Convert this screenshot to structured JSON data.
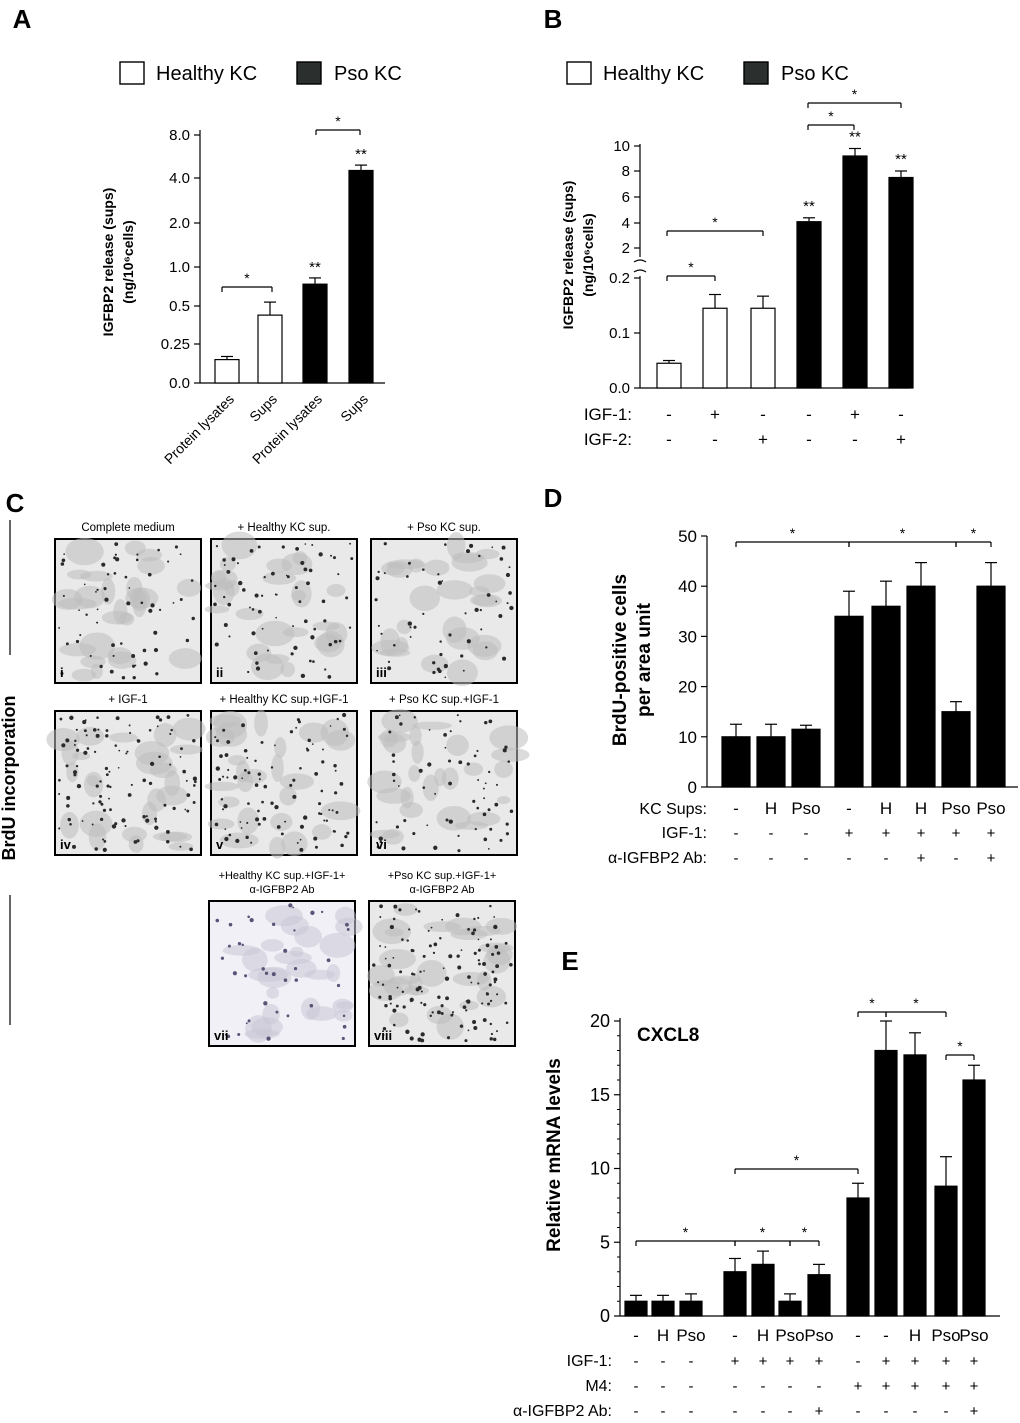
{
  "panel_letters": [
    "A",
    "B",
    "C",
    "D",
    "E"
  ],
  "legend": {
    "healthy": "Healthy KC",
    "pso": "Pso KC"
  },
  "colors": {
    "healthy_fill": "#ffffff",
    "pso_fill": "#000000",
    "swatch_pso": "#2b2f2e",
    "micro_bg": "#e9e9ea",
    "micro_dot": "#2a2a2a"
  },
  "sig": {
    "star": "*",
    "double_star": "**"
  },
  "panelC": {
    "side_label": "BrdU incorporation",
    "images": [
      {
        "title": "Complete medium",
        "numeral": "i"
      },
      {
        "title": "+ Healthy KC sup.",
        "numeral": "ii"
      },
      {
        "title": "+ Pso KC sup.",
        "numeral": "iii"
      },
      {
        "title": "+ IGF-1",
        "numeral": "iv"
      },
      {
        "title": "+ Healthy KC sup.+IGF-1",
        "numeral": "v"
      },
      {
        "title": "+ Pso KC sup.+IGF-1",
        "numeral": "vi"
      },
      {
        "title": "+Healthy KC sup.+IGF-1+",
        "title2": "α-IGFBP2 Ab",
        "numeral": "vii"
      },
      {
        "title": "+Pso KC sup.+IGF-1+",
        "title2": "α-IGFBP2 Ab",
        "numeral": "viii"
      }
    ]
  },
  "chart_data": [
    {
      "panel": "A",
      "type": "bar",
      "ylabel": "IGFBP2 release (sups)",
      "ylabel2": "(ng/10⁶cells)",
      "y_scale": "segmented",
      "y_ticks": [
        "0.0",
        "0.25",
        "0.5",
        "1.0",
        "2.0",
        "4.0",
        "8.0"
      ],
      "categories": [
        "Protein lysates",
        "Sups",
        "Protein lysates",
        "Sups"
      ],
      "groups": [
        "Healthy KC",
        "Healthy KC",
        "Pso KC",
        "Pso KC"
      ],
      "values": [
        0.15,
        0.44,
        0.78,
        4.7
      ],
      "errors": [
        0.02,
        0.11,
        0.08,
        0.5
      ],
      "annotations": [
        "",
        "",
        "**",
        "**"
      ]
    },
    {
      "panel": "B",
      "type": "bar",
      "ylabel": "IGFBP2 release (sups)",
      "ylabel2": "(ng/10⁶cells)",
      "y_scale": "broken",
      "y_ticks": [
        "0.0",
        "0.1",
        "0.2",
        "2",
        "4",
        "6",
        "8",
        "10"
      ],
      "row_labels": [
        "IGF-1:",
        "IGF-2:"
      ],
      "igf1": [
        "-",
        "+",
        "-",
        "-",
        "+",
        "-"
      ],
      "igf2": [
        "-",
        "-",
        "+",
        "-",
        "-",
        "+"
      ],
      "groups": [
        "Healthy KC",
        "Healthy KC",
        "Healthy KC",
        "Pso KC",
        "Pso KC",
        "Pso KC"
      ],
      "values": [
        0.045,
        0.145,
        0.145,
        4.1,
        9.2,
        7.5
      ],
      "errors": [
        0.005,
        0.025,
        0.022,
        0.3,
        0.6,
        0.5
      ],
      "annotations": [
        "",
        "",
        "",
        "**",
        "**",
        "**"
      ]
    },
    {
      "panel": "D",
      "type": "bar",
      "ylabel": "BrdU-positive cells",
      "ylabel2": "per area unit",
      "ylim": [
        0,
        50
      ],
      "y_ticks": [
        "0",
        "10",
        "20",
        "30",
        "40",
        "50"
      ],
      "row_labels": [
        "KC Sups:",
        "IGF-1:",
        "α-IGFBP2 Ab:"
      ],
      "kc_sups": [
        "-",
        "H",
        "Pso",
        "-",
        "H",
        "H",
        "Pso",
        "Pso"
      ],
      "igf1": [
        "-",
        "-",
        "-",
        "+",
        "+",
        "+",
        "+",
        "+"
      ],
      "ab": [
        "-",
        "-",
        "-",
        "-",
        "-",
        "+",
        "-",
        "+"
      ],
      "values": [
        10,
        10,
        11.5,
        34,
        36,
        40,
        15,
        40
      ],
      "errors": [
        2.5,
        2.5,
        0.8,
        5,
        5,
        4.7,
        2,
        4.7
      ]
    },
    {
      "panel": "E",
      "type": "bar",
      "title": "CXCL8",
      "ylabel": "Relative mRNA levels",
      "ylim": [
        0,
        20
      ],
      "y_ticks": [
        "0",
        "5",
        "10",
        "15",
        "20"
      ],
      "row_labels": [
        "IGF-1:",
        "M4:",
        "α-IGFBP2 Ab:"
      ],
      "kc_sups": [
        "-",
        "H",
        "Pso",
        "-",
        "H",
        "Pso",
        "Pso",
        "-",
        "-",
        "H",
        "Pso",
        "Pso"
      ],
      "igf1": [
        "-",
        "-",
        "-",
        "+",
        "+",
        "+",
        "+",
        "-",
        "+",
        "+",
        "+",
        "+"
      ],
      "m4": [
        "-",
        "-",
        "-",
        "-",
        "-",
        "-",
        "-",
        "+",
        "+",
        "+",
        "+",
        "+"
      ],
      "ab": [
        "-",
        "-",
        "-",
        "-",
        "-",
        "-",
        "+",
        "-",
        "-",
        "-",
        "-",
        "+"
      ],
      "values": [
        1,
        1,
        1,
        3,
        3.5,
        1,
        2.8,
        8,
        18,
        17.7,
        8.8,
        16
      ],
      "errors": [
        0.4,
        0.4,
        0.5,
        0.9,
        0.9,
        0.5,
        0.7,
        1,
        2,
        1.5,
        2,
        1
      ]
    }
  ]
}
